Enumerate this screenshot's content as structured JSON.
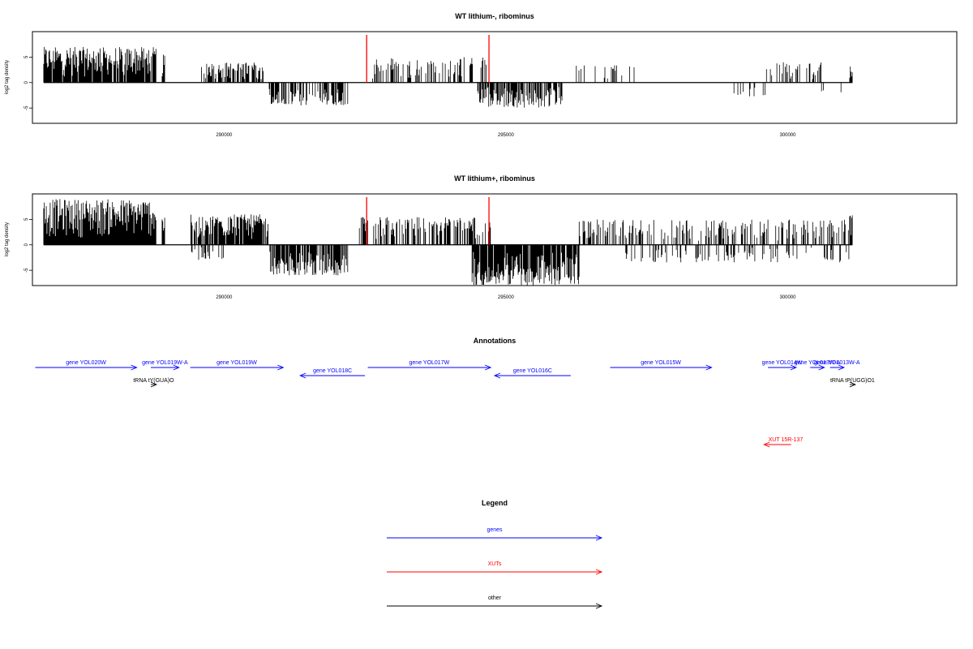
{
  "colors": {
    "gene": "#0000ff",
    "xut": "#ff0000",
    "other": "#000000",
    "marker": "#ff0000",
    "bars": "#000000"
  },
  "chart_data": [
    {
      "type": "bar",
      "title": "WT lithium-, ribominus",
      "ylabel": "log2 tag density",
      "xlim": [
        286600,
        303000
      ],
      "ylim": [
        -8,
        10
      ],
      "x_ticks": [
        290000,
        295000,
        300000
      ],
      "y_ticks": [
        -5,
        0,
        5
      ],
      "marker_lines_x": [
        292530,
        294700
      ],
      "signal_segments": [
        {
          "from": 286800,
          "to": 288800,
          "sign": 1,
          "max": 7,
          "density": 0.9
        },
        {
          "from": 288900,
          "to": 288950,
          "sign": 1,
          "max": 5.5,
          "density": 0.9
        },
        {
          "from": 289600,
          "to": 290700,
          "sign": 1,
          "max": 4,
          "density": 0.6
        },
        {
          "from": 290800,
          "to": 292200,
          "sign": -1,
          "max": 4.5,
          "density": 0.6
        },
        {
          "from": 292600,
          "to": 294700,
          "sign": 1,
          "max": 5,
          "density": 0.3
        },
        {
          "from": 294500,
          "to": 296000,
          "sign": -1,
          "max": 5,
          "density": 0.7
        },
        {
          "from": 296100,
          "to": 297500,
          "sign": 1,
          "max": 3.5,
          "density": 0.08
        },
        {
          "from": 299000,
          "to": 299600,
          "sign": -1,
          "max": 3,
          "density": 0.15
        },
        {
          "from": 299600,
          "to": 300600,
          "sign": 1,
          "max": 4,
          "density": 0.4
        },
        {
          "from": 300600,
          "to": 301100,
          "sign": -1,
          "max": 2,
          "density": 0.1
        },
        {
          "from": 301100,
          "to": 301150,
          "sign": 1,
          "max": 3.5,
          "density": 1
        }
      ]
    },
    {
      "type": "bar",
      "title": "WT lithium+, ribominus",
      "ylabel": "log2 tag density",
      "xlim": [
        286600,
        303000
      ],
      "ylim": [
        -8,
        10
      ],
      "x_ticks": [
        290000,
        295000,
        300000
      ],
      "y_ticks": [
        -5,
        0,
        5
      ],
      "marker_lines_x": [
        292530,
        294700
      ],
      "signal_segments": [
        {
          "from": 286800,
          "to": 288800,
          "sign": 1,
          "max": 9,
          "density": 1
        },
        {
          "from": 288900,
          "to": 288950,
          "sign": 1,
          "max": 6,
          "density": 1
        },
        {
          "from": 289400,
          "to": 290800,
          "sign": 1,
          "max": 6,
          "density": 0.8
        },
        {
          "from": 289400,
          "to": 290000,
          "sign": -1,
          "max": 3,
          "density": 0.3
        },
        {
          "from": 290800,
          "to": 292200,
          "sign": -1,
          "max": 6,
          "density": 0.8
        },
        {
          "from": 292400,
          "to": 294800,
          "sign": 1,
          "max": 5.5,
          "density": 0.5
        },
        {
          "from": 294400,
          "to": 296300,
          "sign": -1,
          "max": 8,
          "density": 0.9
        },
        {
          "from": 296300,
          "to": 301100,
          "sign": 1,
          "max": 5,
          "density": 0.35
        },
        {
          "from": 297000,
          "to": 301100,
          "sign": -1,
          "max": 3.5,
          "density": 0.2
        },
        {
          "from": 301100,
          "to": 301150,
          "sign": 1,
          "max": 6,
          "density": 1
        }
      ]
    }
  ],
  "annotations": {
    "title": "Annotations",
    "items": [
      {
        "label": "gene YOL020W",
        "kind": "gene",
        "strand": "+",
        "start": 286650,
        "end": 288450,
        "row": 0
      },
      {
        "label": "gene YOL019W-A",
        "kind": "gene",
        "strand": "+",
        "start": 288700,
        "end": 289200,
        "row": 0
      },
      {
        "label": "gene YOL019W",
        "kind": "gene",
        "strand": "+",
        "start": 289400,
        "end": 291050,
        "row": 0
      },
      {
        "label": "gene YOL018C",
        "kind": "gene",
        "strand": "-",
        "start": 291350,
        "end": 292500,
        "row": 1
      },
      {
        "label": "gene YOL017W",
        "kind": "gene",
        "strand": "+",
        "start": 292550,
        "end": 294730,
        "row": 0
      },
      {
        "label": "gene YOL016C",
        "kind": "gene",
        "strand": "-",
        "start": 294800,
        "end": 296150,
        "row": 1
      },
      {
        "label": "gene YOL015W",
        "kind": "gene",
        "strand": "+",
        "start": 296850,
        "end": 298650,
        "row": 0
      },
      {
        "label": "gene YOL014W",
        "kind": "gene",
        "strand": "+",
        "start": 299650,
        "end": 300150,
        "row": 0
      },
      {
        "label": "gene YOL013W-A",
        "kind": "gene",
        "strand": "+",
        "start": 300400,
        "end": 300650,
        "row": 0
      },
      {
        "label": "gene YOL013W-A",
        "kind": "gene",
        "strand": "+",
        "start": 300750,
        "end": 301000,
        "row": 0
      },
      {
        "label": "tRNA tY(GUA)O",
        "kind": "other",
        "strand": "+",
        "start": 288700,
        "end": 288800,
        "row": 2
      },
      {
        "label": "tRNA tP(UGG)O1",
        "kind": "other",
        "strand": "+",
        "start": 301100,
        "end": 301200,
        "row": 2
      },
      {
        "label": "XUT 15R-137",
        "kind": "xut",
        "strand": "-",
        "start": 299580,
        "end": 300060,
        "row": 3
      }
    ]
  },
  "legend": {
    "title": "Legend",
    "entries": [
      {
        "label": "genes",
        "kind": "gene"
      },
      {
        "label": "XUTs",
        "kind": "xut"
      },
      {
        "label": "other",
        "kind": "other"
      }
    ]
  }
}
